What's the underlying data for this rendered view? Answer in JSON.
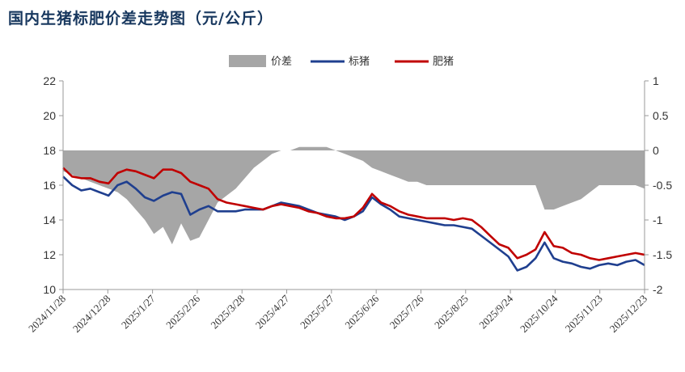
{
  "title": "国内生猪标肥价差走势图（元/公斤）",
  "colors": {
    "spread": "#A6A6A6",
    "lean": "#1F3F8F",
    "fat": "#C00000",
    "axis": "#999999"
  },
  "chart_data": {
    "type": "line",
    "legend_position": "top",
    "grid": false,
    "x_tick_labels": [
      "2024/11/28",
      "2024/12/28",
      "2025/1/27",
      "2025/2/26",
      "2025/3/28",
      "2025/4/27",
      "2025/5/27",
      "2025/6/26",
      "2025/7/26",
      "2025/8/25",
      "2025/9/24",
      "2025/10/24",
      "2025/11/23",
      "2025/12/23"
    ],
    "y_left": {
      "min": 10,
      "max": 22,
      "ticks": [
        10,
        12,
        14,
        16,
        18,
        20,
        22
      ]
    },
    "y_right": {
      "min": -2,
      "max": 1,
      "ticks": [
        -2,
        -1.5,
        -1,
        -0.5,
        0,
        0.5,
        1
      ],
      "tick_labels": [
        "-2",
        "-1.5",
        "-1",
        "-0.5",
        "0",
        "0.5",
        "1"
      ]
    },
    "series": [
      {
        "name": "价差",
        "kind": "area",
        "axis": "right",
        "values": [
          -0.3,
          -0.35,
          -0.4,
          -0.45,
          -0.5,
          -0.55,
          -0.6,
          -0.7,
          -0.85,
          -1.0,
          -1.2,
          -1.1,
          -1.35,
          -1.05,
          -1.3,
          -1.25,
          -1.0,
          -0.75,
          -0.65,
          -0.55,
          -0.4,
          -0.25,
          -0.15,
          -0.05,
          0.0,
          0.0,
          0.05,
          0.05,
          0.05,
          0.05,
          0.0,
          -0.05,
          -0.1,
          -0.15,
          -0.25,
          -0.3,
          -0.35,
          -0.4,
          -0.45,
          -0.45,
          -0.5,
          -0.5,
          -0.5,
          -0.5,
          -0.5,
          -0.5,
          -0.5,
          -0.5,
          -0.5,
          -0.5,
          -0.5,
          -0.5,
          -0.5,
          -0.85,
          -0.85,
          -0.8,
          -0.75,
          -0.7,
          -0.6,
          -0.5,
          -0.5,
          -0.5,
          -0.5,
          -0.5,
          -0.55
        ]
      },
      {
        "name": "标猪",
        "kind": "line",
        "axis": "left",
        "values": [
          16.5,
          16.0,
          15.7,
          15.8,
          15.6,
          15.4,
          16.0,
          16.2,
          15.8,
          15.3,
          15.1,
          15.4,
          15.6,
          15.5,
          14.3,
          14.6,
          14.8,
          14.5,
          14.5,
          14.5,
          14.6,
          14.6,
          14.6,
          14.8,
          15.0,
          14.9,
          14.8,
          14.6,
          14.4,
          14.3,
          14.2,
          14.0,
          14.2,
          14.5,
          15.3,
          14.9,
          14.6,
          14.2,
          14.1,
          14.0,
          13.9,
          13.8,
          13.7,
          13.7,
          13.6,
          13.5,
          13.1,
          12.7,
          12.3,
          11.9,
          11.1,
          11.3,
          11.8,
          12.7,
          11.8,
          11.6,
          11.5,
          11.3,
          11.2,
          11.4,
          11.5,
          11.4,
          11.6,
          11.7,
          11.4
        ]
      },
      {
        "name": "肥猪",
        "kind": "line",
        "axis": "left",
        "values": [
          17.0,
          16.5,
          16.4,
          16.4,
          16.2,
          16.1,
          16.7,
          16.9,
          16.8,
          16.6,
          16.4,
          16.9,
          16.9,
          16.7,
          16.2,
          16.0,
          15.8,
          15.2,
          15.0,
          14.9,
          14.8,
          14.7,
          14.6,
          14.8,
          14.9,
          14.8,
          14.7,
          14.5,
          14.4,
          14.2,
          14.1,
          14.1,
          14.2,
          14.7,
          15.5,
          15.0,
          14.8,
          14.5,
          14.3,
          14.2,
          14.1,
          14.1,
          14.1,
          14.0,
          14.1,
          14.0,
          13.6,
          13.1,
          12.6,
          12.4,
          11.8,
          12.0,
          12.3,
          13.3,
          12.5,
          12.4,
          12.1,
          12.0,
          11.8,
          11.7,
          11.8,
          11.9,
          12.0,
          12.1,
          12.0
        ]
      }
    ]
  }
}
